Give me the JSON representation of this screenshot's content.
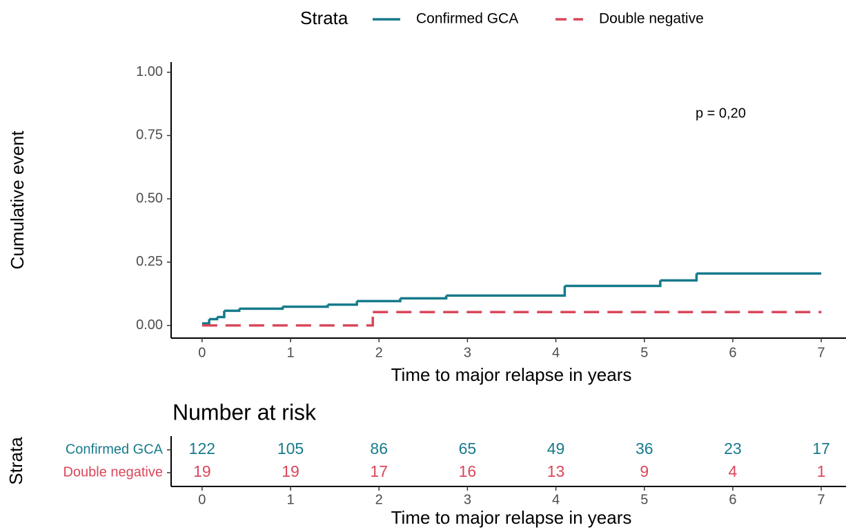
{
  "chart_data": [
    {
      "type": "step",
      "step": "post",
      "legend_title": "Strata",
      "legend_position": "top",
      "annotation": "p = 0,20",
      "x_label": "Time to major relapse in years",
      "y_label": "Cumulative event",
      "xlim": [
        -0.35,
        7.28
      ],
      "ylim": [
        -0.05,
        1.04
      ],
      "xticks": [
        0,
        1,
        2,
        3,
        4,
        5,
        6,
        7
      ],
      "yticks": [
        {
          "value": 0,
          "label": "0.00"
        },
        {
          "value": 0.25,
          "label": "0.25"
        },
        {
          "value": 0.5,
          "label": "0.50"
        },
        {
          "value": 0.75,
          "label": "0.75"
        },
        {
          "value": 1,
          "label": "1.00"
        }
      ],
      "series": [
        {
          "name": "Confirmed GCA",
          "color": "#167a8b",
          "dash": false,
          "x": [
            0,
            0.08,
            0.17,
            0.25,
            0.42,
            0.91,
            1.42,
            1.75,
            2.24,
            2.76,
            4.1,
            5.18,
            5.59,
            7
          ],
          "values": [
            0.008,
            0.025,
            0.033,
            0.058,
            0.066,
            0.074,
            0.082,
            0.096,
            0.107,
            0.118,
            0.156,
            0.178,
            0.205,
            0.205
          ]
        },
        {
          "name": "Double negative",
          "color": "#d9475a",
          "dash": true,
          "x": [
            0,
            1.93,
            7
          ],
          "values": [
            0,
            0.053,
            0.053
          ]
        }
      ]
    },
    {
      "type": "risk_table",
      "title": "Number at risk",
      "y_label": "Strata",
      "x_label": "Time to major relapse in years",
      "xlim": [
        -0.35,
        7.28
      ],
      "xticks": [
        0,
        1,
        2,
        3,
        4,
        5,
        6,
        7
      ],
      "series": [
        {
          "name": "Confirmed GCA",
          "color": "#167a8b",
          "values": [
            122,
            105,
            86,
            65,
            49,
            36,
            23,
            17
          ]
        },
        {
          "name": "Double negative",
          "color": "#d9475a",
          "values": [
            19,
            19,
            17,
            16,
            13,
            9,
            4,
            1
          ]
        }
      ]
    }
  ]
}
